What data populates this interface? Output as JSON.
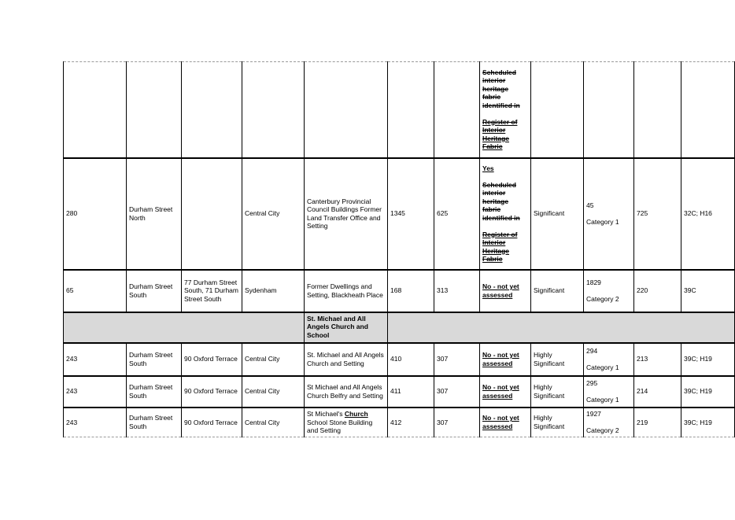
{
  "document": {
    "background": "#ffffff",
    "grey_fill": "#d9d9d9",
    "border_color": "#000000"
  },
  "table": {
    "col_count": 12,
    "rows": [
      {
        "type": "data",
        "top_cols": [
          7
        ],
        "cells": [
          "",
          "",
          "",
          "",
          "",
          "",
          "",
          [
            [
              {
                "t": "Scheduled interior heritage fabric identified in",
                "b": true,
                "s": true
              }
            ],
            "",
            [
              {
                "t": "Register of Interior Heritage Fabric",
                "b": true,
                "s": true,
                "u": true
              }
            ]
          ],
          "",
          "",
          "",
          ""
        ]
      },
      {
        "type": "data",
        "top_cols": [
          7
        ],
        "cells": [
          "280",
          "Durham Street North",
          "",
          "Central City",
          "Canterbury Provincial Council Buildings Former Land Transfer Office and Setting",
          "1345",
          "625",
          [
            [
              {
                "t": "Yes",
                "b": true,
                "u": true
              }
            ],
            "",
            [
              {
                "t": "Scheduled interior heritage fabric identified in",
                "b": true,
                "s": true
              }
            ],
            "",
            [
              {
                "t": "Register of Interior Heritage Fabric",
                "b": true,
                "s": true,
                "u": true
              }
            ]
          ],
          "Significant",
          [
            "45",
            "",
            "Category 1"
          ],
          "725",
          "32C; H16"
        ]
      },
      {
        "type": "data",
        "cells": [
          "65",
          "Durham Street South",
          "77 Durham Street South, 71 Durham Street South",
          "Sydenham",
          "Former Dwellings and Setting, Blackheath Place",
          "168",
          "313",
          [
            [
              {
                "t": "No - not yet assessed",
                "b": true,
                "u": true
              }
            ]
          ],
          "Significant",
          [
            "1829",
            "",
            "Category 2"
          ],
          "220",
          "39C"
        ]
      },
      {
        "type": "group",
        "left_span": 4,
        "right_span": 7,
        "label": [
          [
            {
              "t": "St. Michael and All Angels Church and School",
              "b": true
            }
          ]
        ]
      },
      {
        "type": "data",
        "cells": [
          "243",
          "Durham Street South",
          "90 Oxford Terrace",
          "Central City",
          "St. Michael and All Angels Church and Setting",
          "410",
          "307",
          [
            [
              {
                "t": "No - not yet assessed",
                "b": true,
                "u": true
              }
            ]
          ],
          "Highly Significant",
          [
            "294",
            "",
            "Category 1"
          ],
          "213",
          "39C; H19"
        ]
      },
      {
        "type": "data",
        "cells": [
          "243",
          "Durham Street South",
          "90 Oxford Terrace",
          "Central City",
          "St Michael and All Angels Church Belfry and Setting",
          "411",
          "307",
          [
            [
              {
                "t": "No - not yet assessed",
                "b": true,
                "u": true
              }
            ]
          ],
          "Highly Significant",
          [
            "295",
            "",
            "Category 1"
          ],
          "214",
          "39C; H19"
        ]
      },
      {
        "type": "data",
        "cells": [
          "243",
          "Durham Street South",
          "90 Oxford Terrace",
          "Central City",
          [
            [
              {
                "t": "St Michael's "
              },
              {
                "t": "Church",
                "b": true,
                "u": true
              },
              {
                "t": " School Stone Building and Setting"
              }
            ]
          ],
          "412",
          "307",
          [
            [
              {
                "t": "No - not yet assessed",
                "b": true,
                "u": true
              }
            ]
          ],
          "Highly Significant",
          [
            "1927",
            "",
            "Category 2"
          ],
          "219",
          "39C; H19"
        ]
      }
    ]
  }
}
